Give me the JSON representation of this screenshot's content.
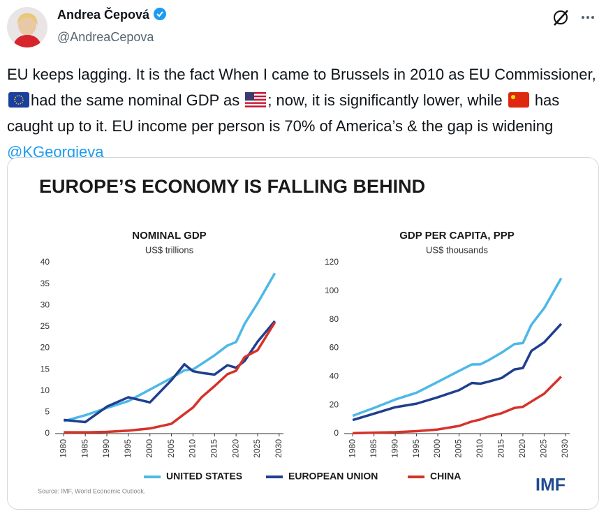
{
  "tweet": {
    "author": "Andrea Čepová",
    "handle": "@AndreaCepova",
    "text": [
      "EU keeps lagging. It is the fact When I came to Brussels in 2010 as EU Commissioner, ",
      "had the same nominal GDP as ",
      "; now, it is significantly lower, while ",
      " has caught up to it. EU income per person is 70% of America’s & the gap is widening "
    ],
    "mention": "@KGeorgieva"
  },
  "figure": {
    "title": "EUROPE’S ECONOMY IS FALLING BEHIND",
    "source": "Source: IMF, World Economic Outlook.",
    "logo": "IMF"
  },
  "chart_data": [
    {
      "type": "line",
      "title": "NOMINAL GDP",
      "subtitle": "US$ trillions",
      "x": [
        1980,
        1985,
        1990,
        1995,
        2000,
        2005,
        2008,
        2010,
        2012,
        2015,
        2018,
        2020,
        2022,
        2025,
        2029
      ],
      "series": [
        {
          "name": "UNITED STATES",
          "color": "#4db8e8",
          "values": [
            2.9,
            4.3,
            6.0,
            7.6,
            10.3,
            13.0,
            14.8,
            15.0,
            16.3,
            18.3,
            20.6,
            21.4,
            25.7,
            30.5,
            37.5
          ]
        },
        {
          "name": "EUROPEAN UNION",
          "color": "#1f3f8f",
          "values": [
            3.2,
            2.7,
            6.3,
            8.5,
            7.3,
            12.5,
            16.2,
            14.6,
            14.2,
            13.8,
            16.0,
            15.4,
            17.0,
            21.5,
            26.3
          ]
        },
        {
          "name": "CHINA",
          "color": "#d6322a",
          "values": [
            0.3,
            0.3,
            0.4,
            0.7,
            1.2,
            2.3,
            4.6,
            6.1,
            8.5,
            11.1,
            13.9,
            14.7,
            17.9,
            19.5,
            26
          ]
        }
      ],
      "xlim": [
        1978,
        2031
      ],
      "xticks": [
        1980,
        1985,
        1990,
        1995,
        2000,
        2005,
        2010,
        2015,
        2020,
        2025,
        2030
      ],
      "ylim": [
        0,
        40
      ],
      "yticks": [
        0,
        5,
        10,
        15,
        20,
        25,
        30,
        35,
        40
      ],
      "grid": false
    },
    {
      "type": "line",
      "title": "GDP PER CAPITA, PPP",
      "subtitle": "US$ thousands",
      "x": [
        1980,
        1985,
        1990,
        1995,
        2000,
        2005,
        2008,
        2010,
        2012,
        2015,
        2018,
        2020,
        2022,
        2025,
        2029
      ],
      "series": [
        {
          "name": "UNITED STATES",
          "color": "#4db8e8",
          "values": [
            12.5,
            18,
            23.9,
            28.7,
            36.3,
            44,
            48.5,
            48.6,
            51.6,
            56.8,
            62.8,
            63.5,
            76.4,
            88,
            109
          ]
        },
        {
          "name": "EUROPEAN UNION",
          "color": "#1f3f8f",
          "values": [
            9.5,
            14,
            18.5,
            21,
            25.5,
            30.5,
            35.5,
            35,
            36.5,
            39,
            45,
            46,
            58,
            64,
            77
          ]
        },
        {
          "name": "CHINA",
          "color": "#d6322a",
          "values": [
            0.3,
            0.7,
            1.0,
            1.7,
            2.9,
            5.4,
            8.5,
            9.9,
            12,
            14.3,
            18,
            18.8,
            22.5,
            28,
            40
          ]
        }
      ],
      "xlim": [
        1978,
        2031
      ],
      "xticks": [
        1980,
        1985,
        1990,
        1995,
        2000,
        2005,
        2010,
        2015,
        2020,
        2025,
        2030
      ],
      "ylim": [
        0,
        120
      ],
      "yticks": [
        0,
        20,
        40,
        60,
        80,
        100,
        120
      ],
      "grid": false
    }
  ]
}
